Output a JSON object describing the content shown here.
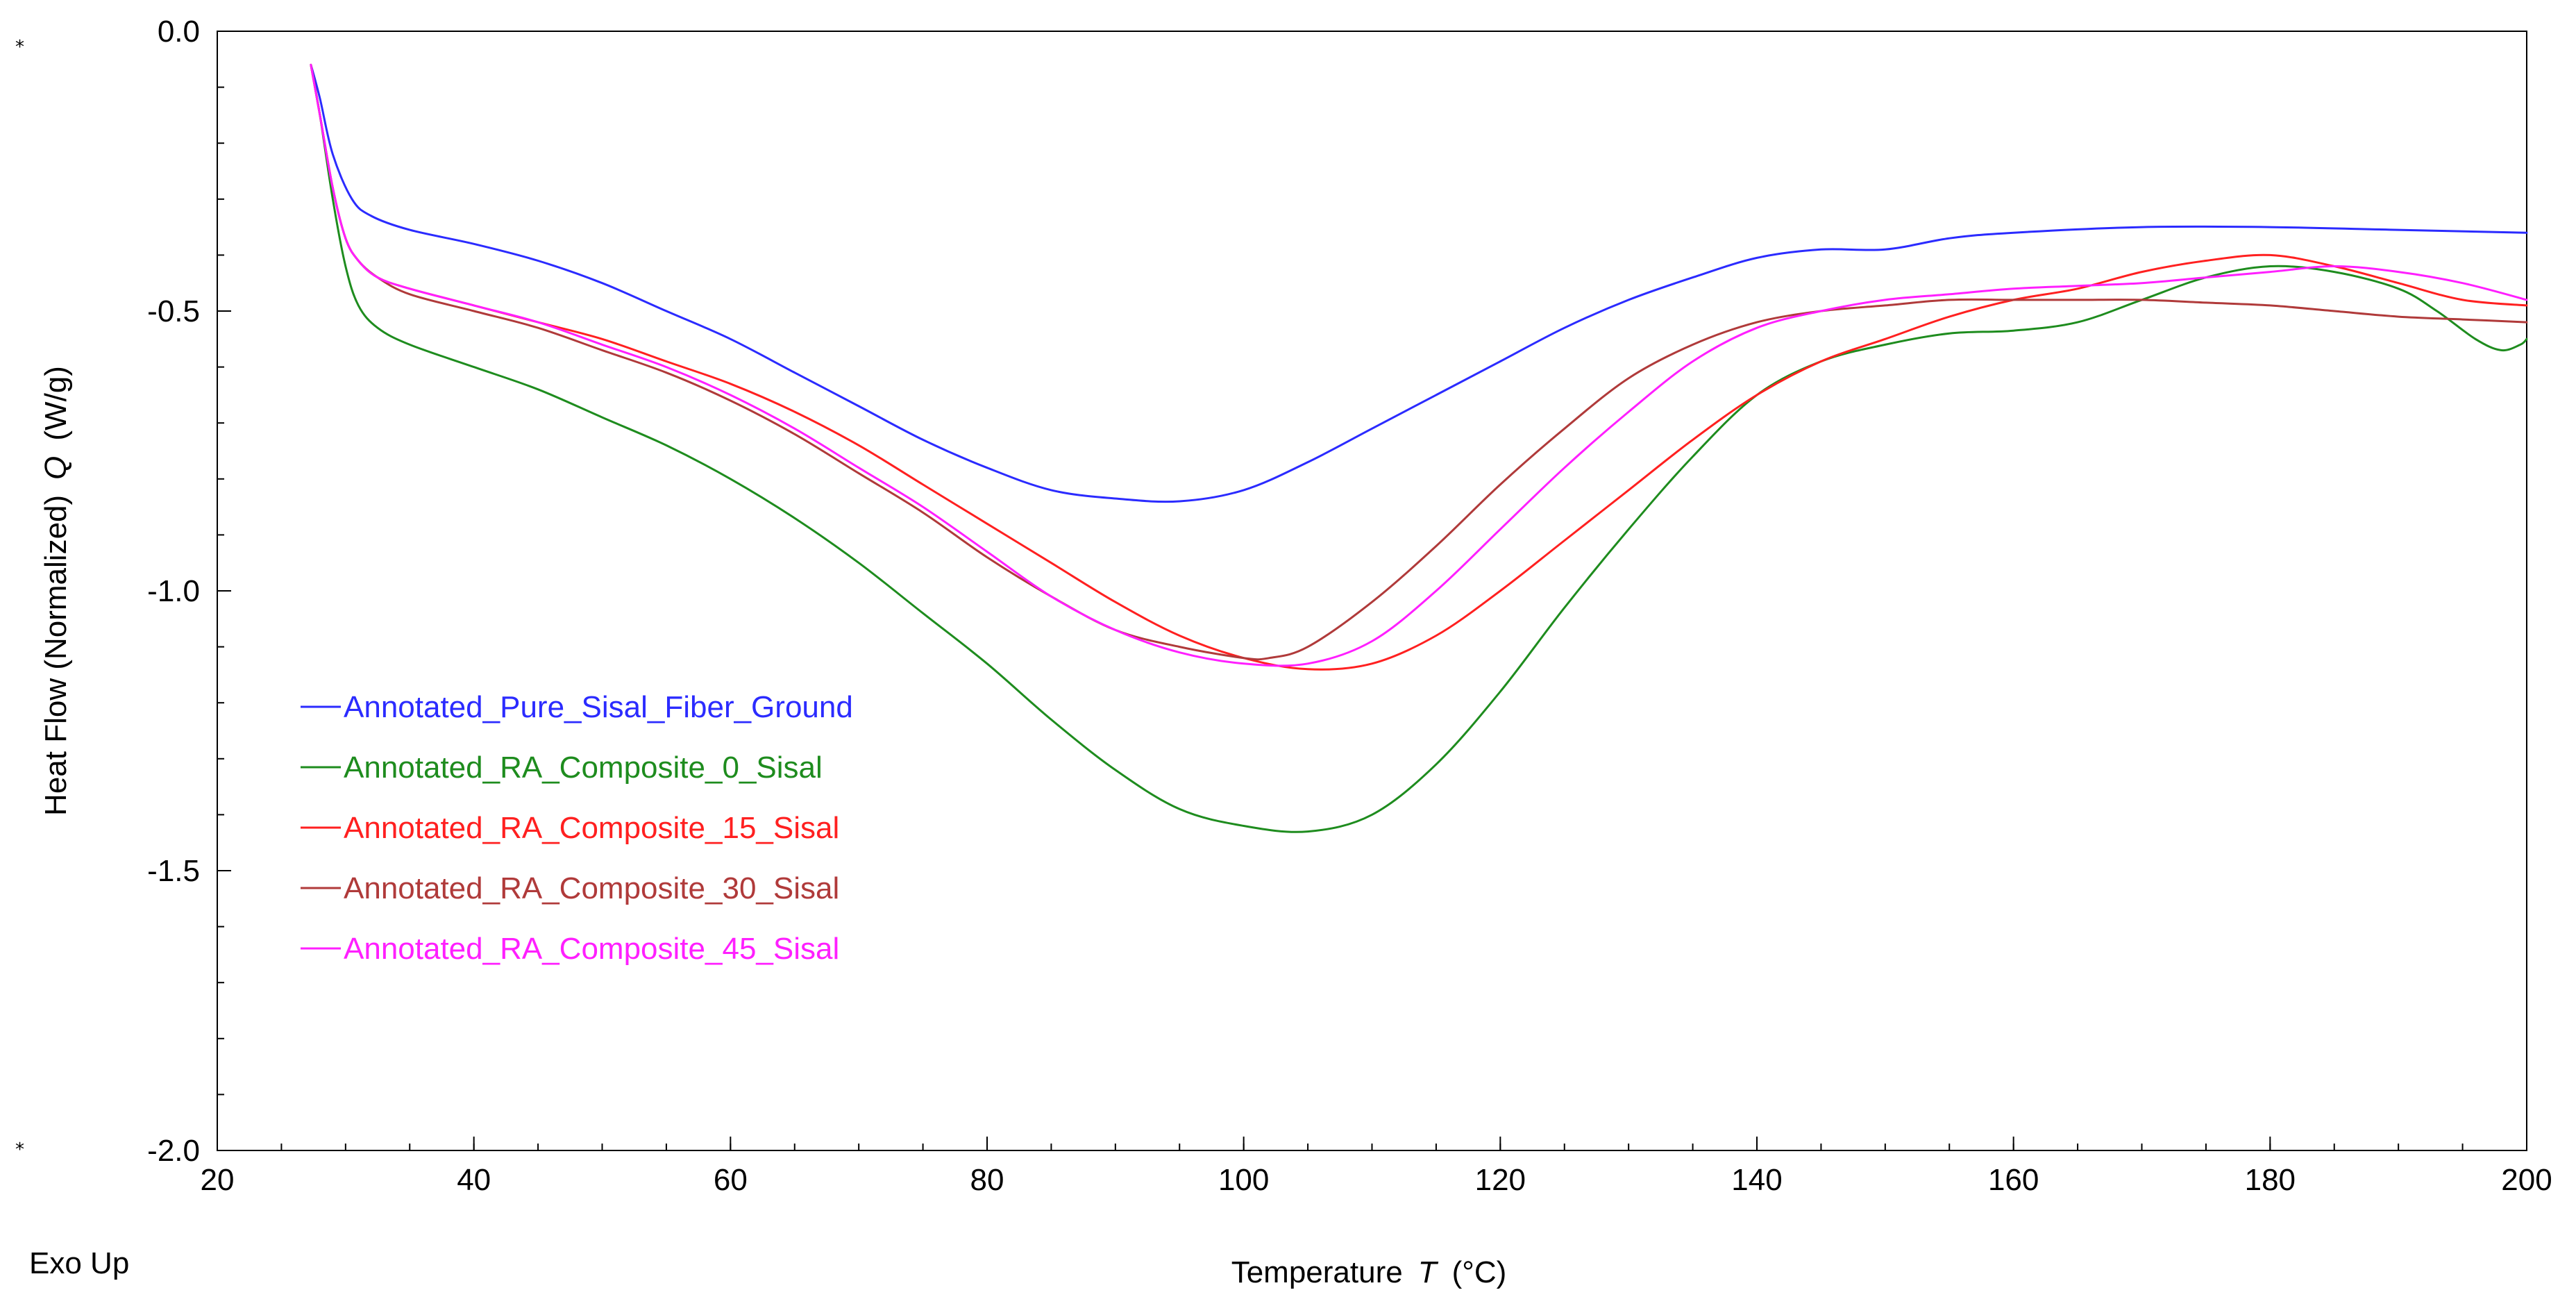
{
  "chart_data": {
    "type": "line",
    "title": "",
    "xlabel_prefix": "Temperature",
    "xlabel_symbol": "T",
    "xlabel_unit": "(°C)",
    "ylabel_prefix": "Heat Flow (Normalized)",
    "ylabel_symbol": "Q",
    "ylabel_unit": "(W/g)",
    "corner_note": "Exo Up",
    "left_markers": [
      "*",
      "*"
    ],
    "xlim": [
      20,
      200
    ],
    "ylim": [
      -2.0,
      0.0
    ],
    "x_ticks": [
      20,
      40,
      60,
      80,
      100,
      120,
      140,
      160,
      180,
      200
    ],
    "x_tick_labels": [
      "20",
      "40",
      "60",
      "80",
      "100",
      "120",
      "140",
      "160",
      "180",
      "200"
    ],
    "y_ticks": [
      0.0,
      -0.5,
      -1.0,
      -1.5,
      -2.0
    ],
    "y_tick_labels": [
      "0.0",
      "-0.5",
      "-1.0",
      "-1.5",
      "-2.0"
    ],
    "x_minor_step": 5,
    "y_minor_step": 0.1,
    "grid": false,
    "legend_position": "center-left",
    "series": [
      {
        "name": "Annotated_Pure_Sisal_Fiber_Ground",
        "color": "#2b2bff",
        "x": [
          27.3,
          28.0,
          29.0,
          30.5,
          32.0,
          35,
          40,
          45,
          50,
          55,
          60,
          65,
          70,
          75,
          80,
          85,
          90,
          95,
          100,
          105,
          110,
          115,
          120,
          125,
          130,
          135,
          140,
          145,
          150,
          155,
          160,
          170,
          180,
          190,
          200
        ],
        "y": [
          -0.06,
          -0.12,
          -0.22,
          -0.3,
          -0.33,
          -0.355,
          -0.38,
          -0.41,
          -0.45,
          -0.5,
          -0.55,
          -0.61,
          -0.67,
          -0.73,
          -0.78,
          -0.82,
          -0.835,
          -0.84,
          -0.82,
          -0.77,
          -0.71,
          -0.65,
          -0.59,
          -0.53,
          -0.48,
          -0.44,
          -0.405,
          -0.39,
          -0.39,
          -0.37,
          -0.36,
          -0.35,
          -0.35,
          -0.355,
          -0.36
        ]
      },
      {
        "name": "Annotated_RA_Composite_0_Sisal",
        "color": "#1e8c1e",
        "x": [
          27.3,
          28.0,
          29.0,
          30.0,
          31.0,
          32.5,
          35,
          40,
          45,
          50,
          55,
          60,
          65,
          70,
          75,
          80,
          85,
          90,
          95,
          100,
          105,
          110,
          115,
          120,
          125,
          130,
          135,
          140,
          145,
          150,
          155,
          160,
          165,
          170,
          175,
          180,
          185,
          190,
          193,
          196,
          198,
          199.5,
          200
        ],
        "y": [
          -0.06,
          -0.15,
          -0.3,
          -0.42,
          -0.49,
          -0.53,
          -0.56,
          -0.6,
          -0.64,
          -0.69,
          -0.74,
          -0.8,
          -0.87,
          -0.95,
          -1.04,
          -1.13,
          -1.23,
          -1.32,
          -1.39,
          -1.42,
          -1.43,
          -1.4,
          -1.31,
          -1.18,
          -1.03,
          -0.89,
          -0.76,
          -0.65,
          -0.59,
          -0.56,
          -0.54,
          -0.535,
          -0.52,
          -0.48,
          -0.44,
          -0.42,
          -0.43,
          -0.46,
          -0.5,
          -0.55,
          -0.57,
          -0.56,
          -0.55
        ]
      },
      {
        "name": "Annotated_RA_Composite_15_Sisal",
        "color": "#ff2020",
        "x": [
          27.3,
          28.0,
          29.0,
          30.0,
          31.0,
          32.5,
          35,
          40,
          45,
          50,
          55,
          60,
          65,
          70,
          75,
          80,
          85,
          90,
          95,
          100,
          105,
          110,
          115,
          120,
          125,
          130,
          135,
          140,
          145,
          150,
          155,
          160,
          165,
          170,
          175,
          180,
          185,
          190,
          195,
          200
        ],
        "y": [
          -0.06,
          -0.15,
          -0.28,
          -0.37,
          -0.41,
          -0.44,
          -0.46,
          -0.49,
          -0.52,
          -0.55,
          -0.59,
          -0.63,
          -0.68,
          -0.74,
          -0.81,
          -0.88,
          -0.95,
          -1.02,
          -1.08,
          -1.12,
          -1.14,
          -1.13,
          -1.08,
          -1.0,
          -0.91,
          -0.82,
          -0.73,
          -0.65,
          -0.59,
          -0.55,
          -0.51,
          -0.48,
          -0.46,
          -0.43,
          -0.41,
          -0.4,
          -0.42,
          -0.45,
          -0.48,
          -0.49
        ]
      },
      {
        "name": "Annotated_RA_Composite_30_Sisal",
        "color": "#b03a3a",
        "x": [
          27.3,
          28.0,
          29.0,
          30.0,
          31.0,
          32.5,
          35,
          40,
          45,
          50,
          55,
          60,
          65,
          70,
          75,
          80,
          85,
          90,
          95,
          100,
          102,
          105,
          110,
          115,
          120,
          125,
          130,
          135,
          140,
          145,
          150,
          155,
          160,
          165,
          170,
          175,
          180,
          185,
          190,
          195,
          200
        ],
        "y": [
          -0.06,
          -0.15,
          -0.28,
          -0.37,
          -0.41,
          -0.44,
          -0.47,
          -0.5,
          -0.53,
          -0.57,
          -0.61,
          -0.66,
          -0.72,
          -0.79,
          -0.86,
          -0.94,
          -1.01,
          -1.07,
          -1.1,
          -1.12,
          -1.12,
          -1.1,
          -1.02,
          -0.92,
          -0.81,
          -0.71,
          -0.62,
          -0.56,
          -0.52,
          -0.5,
          -0.49,
          -0.48,
          -0.48,
          -0.48,
          -0.48,
          -0.485,
          -0.49,
          -0.5,
          -0.51,
          -0.515,
          -0.52
        ]
      },
      {
        "name": "Annotated_RA_Composite_45_Sisal",
        "color": "#ff1fff",
        "x": [
          27.3,
          28.0,
          29.0,
          30.0,
          31.0,
          32.5,
          35,
          40,
          45,
          50,
          55,
          60,
          65,
          70,
          75,
          80,
          85,
          90,
          95,
          100,
          105,
          110,
          115,
          120,
          125,
          130,
          135,
          140,
          145,
          150,
          155,
          160,
          165,
          170,
          175,
          180,
          185,
          190,
          195,
          200
        ],
        "y": [
          -0.06,
          -0.15,
          -0.28,
          -0.37,
          -0.41,
          -0.44,
          -0.46,
          -0.49,
          -0.52,
          -0.56,
          -0.6,
          -0.65,
          -0.71,
          -0.78,
          -0.85,
          -0.93,
          -1.01,
          -1.07,
          -1.11,
          -1.13,
          -1.13,
          -1.09,
          -1.0,
          -0.89,
          -0.78,
          -0.68,
          -0.59,
          -0.53,
          -0.5,
          -0.48,
          -0.47,
          -0.46,
          -0.455,
          -0.45,
          -0.44,
          -0.43,
          -0.42,
          -0.43,
          -0.45,
          -0.48
        ]
      }
    ]
  }
}
